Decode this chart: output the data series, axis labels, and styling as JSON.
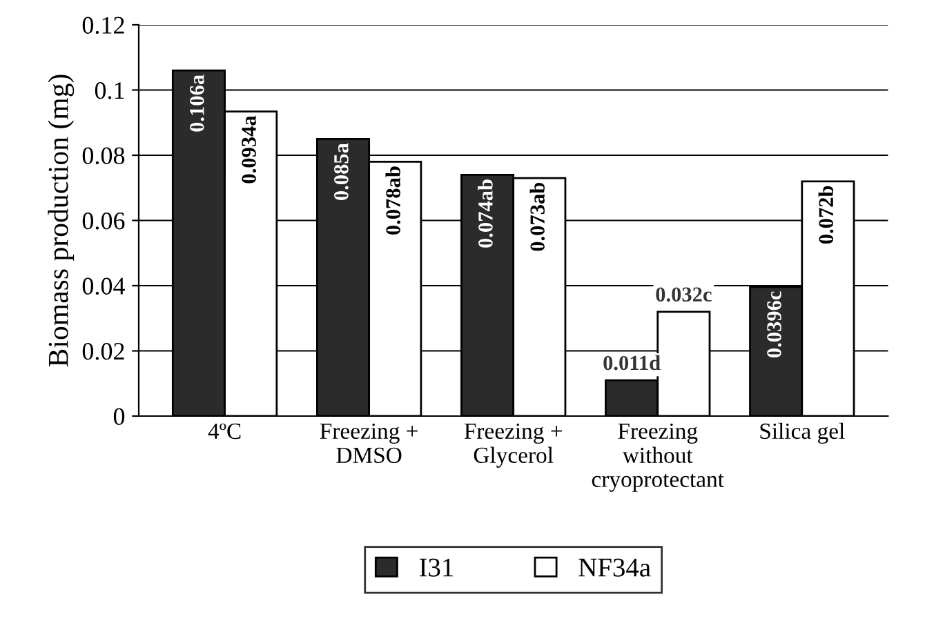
{
  "chart_data": {
    "type": "bar",
    "ylabel": "Biomass production (mg)",
    "categories": [
      "4ºC",
      "Freezing +\nDMSO",
      "Freezing +\nGlycerol",
      "Freezing\nwithout\ncryoprotectant",
      "Silica gel"
    ],
    "series": [
      {
        "name": "I31",
        "color": "#2b2b2b",
        "values": [
          0.106,
          0.085,
          0.074,
          0.011,
          0.0396
        ],
        "value_labels": [
          "0.106a",
          "0.085a",
          "0.074ab",
          "0.011d",
          "0.0396c"
        ]
      },
      {
        "name": "NF34a",
        "color": "#ffffff",
        "values": [
          0.0934,
          0.078,
          0.073,
          0.032,
          0.072
        ],
        "value_labels": [
          "0.0934a",
          "0.078ab",
          "0.073ab",
          "0.032c",
          "0.072b"
        ]
      }
    ],
    "ylim": [
      0,
      0.12
    ],
    "yticks": [
      0,
      0.02,
      0.04,
      0.06,
      0.08,
      0.1,
      0.12
    ],
    "grid": "y",
    "legend": "bottom"
  }
}
